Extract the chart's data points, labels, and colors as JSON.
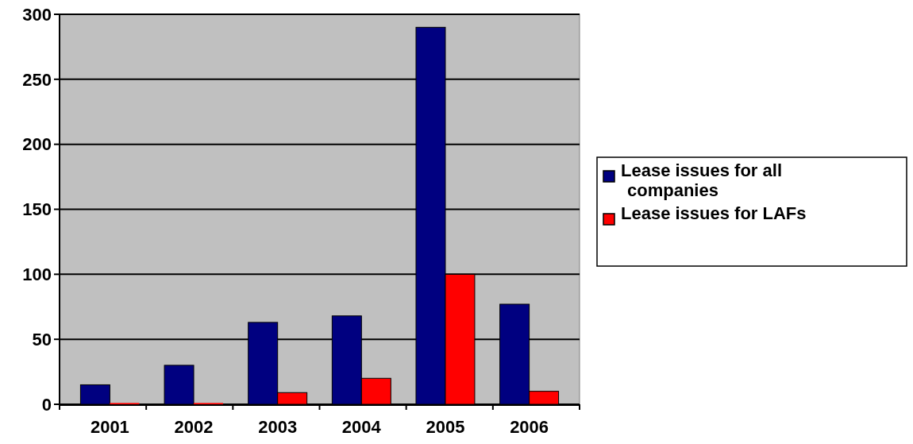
{
  "chart_data": {
    "type": "bar",
    "categories": [
      "2001",
      "2002",
      "2003",
      "2004",
      "2005",
      "2006"
    ],
    "series": [
      {
        "name": "Lease issues for all companies",
        "color": "#000080",
        "values": [
          15,
          30,
          63,
          68,
          290,
          77
        ]
      },
      {
        "name": "Lease issues for LAFs",
        "color": "#ff0000",
        "values": [
          1,
          1,
          9,
          20,
          100,
          10
        ]
      }
    ],
    "ylim": [
      0,
      300
    ],
    "yticks": [
      0,
      50,
      100,
      150,
      200,
      250,
      300
    ],
    "grid": "y",
    "legend": "right"
  }
}
